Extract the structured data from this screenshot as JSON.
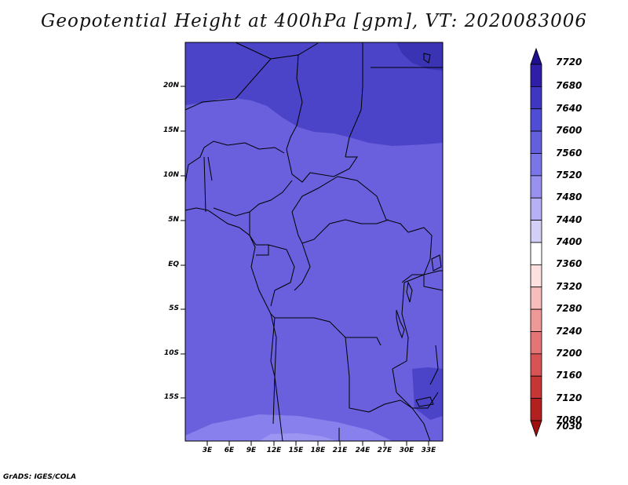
{
  "title": "Geopotential Height at 400hPa [gpm], VT: 2020083006",
  "footer": "GrADS: IGES/COLA",
  "map": {
    "lat_ticks": [
      "20N",
      "15N",
      "10N",
      "5N",
      "EQ",
      "5S",
      "10S",
      "15S"
    ],
    "lon_ticks": [
      "3E",
      "6E",
      "9E",
      "12E",
      "15E",
      "18E",
      "21E",
      "24E",
      "27E",
      "30E",
      "33E"
    ]
  },
  "colorbar": {
    "levels": [
      "7720",
      "7680",
      "7640",
      "7600",
      "7560",
      "7520",
      "7480",
      "7440",
      "7400",
      "7360",
      "7320",
      "7280",
      "7240",
      "7200",
      "7160",
      "7120",
      "7080",
      "7030"
    ],
    "colors": [
      "#1e0f8c",
      "#2f1fa8",
      "#3f37c2",
      "#4f4dd6",
      "#6460dd",
      "#7a76e8",
      "#9891ef",
      "#b6b0f4",
      "#d3d0f8",
      "#ffffff",
      "#fde0e0",
      "#f7bcbc",
      "#ef9898",
      "#e47575",
      "#d85454",
      "#c63636",
      "#b22020",
      "#9e1010"
    ]
  },
  "colors": {
    "field_main": "#6a5fdc",
    "field_north": "#4b44c8",
    "field_south": "#8880ec",
    "boundary": "#000000"
  }
}
